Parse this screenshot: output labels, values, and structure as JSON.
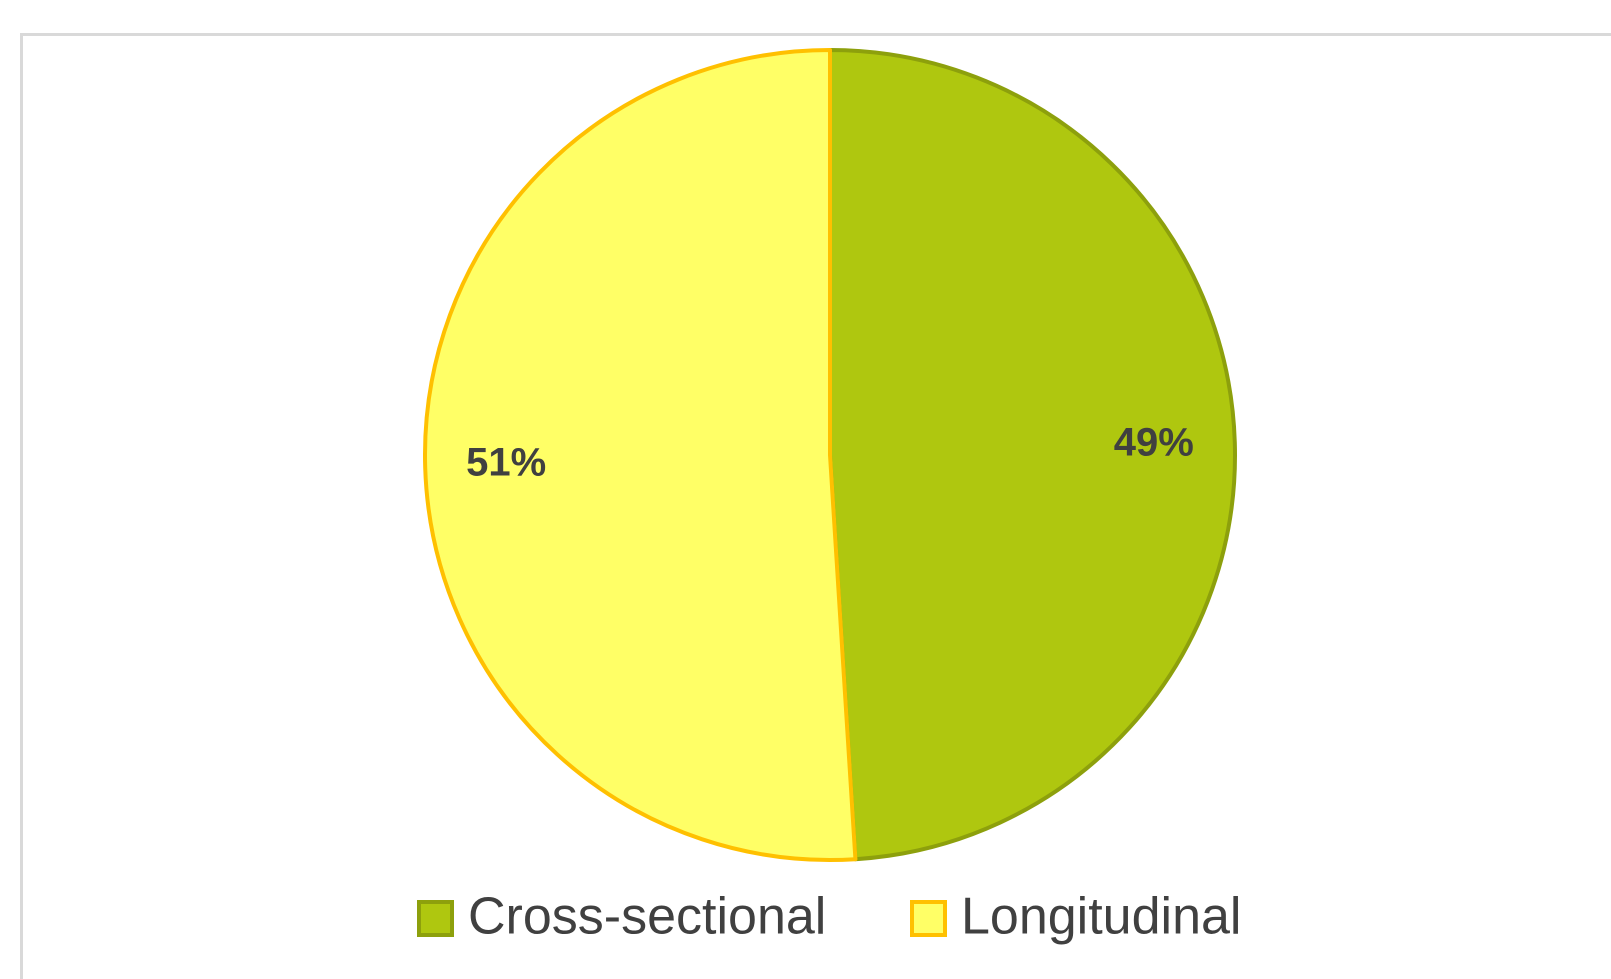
{
  "chart_data": {
    "type": "pie",
    "categories": [
      "Cross-sectional",
      "Longitudinal"
    ],
    "values": [
      49,
      51
    ],
    "value_labels": [
      "49%",
      "51%"
    ],
    "colors": [
      "#afc70f",
      "#ffff66"
    ],
    "edge_colors": [
      "#8da00c",
      "#ffc000"
    ],
    "legend": "bottom"
  }
}
